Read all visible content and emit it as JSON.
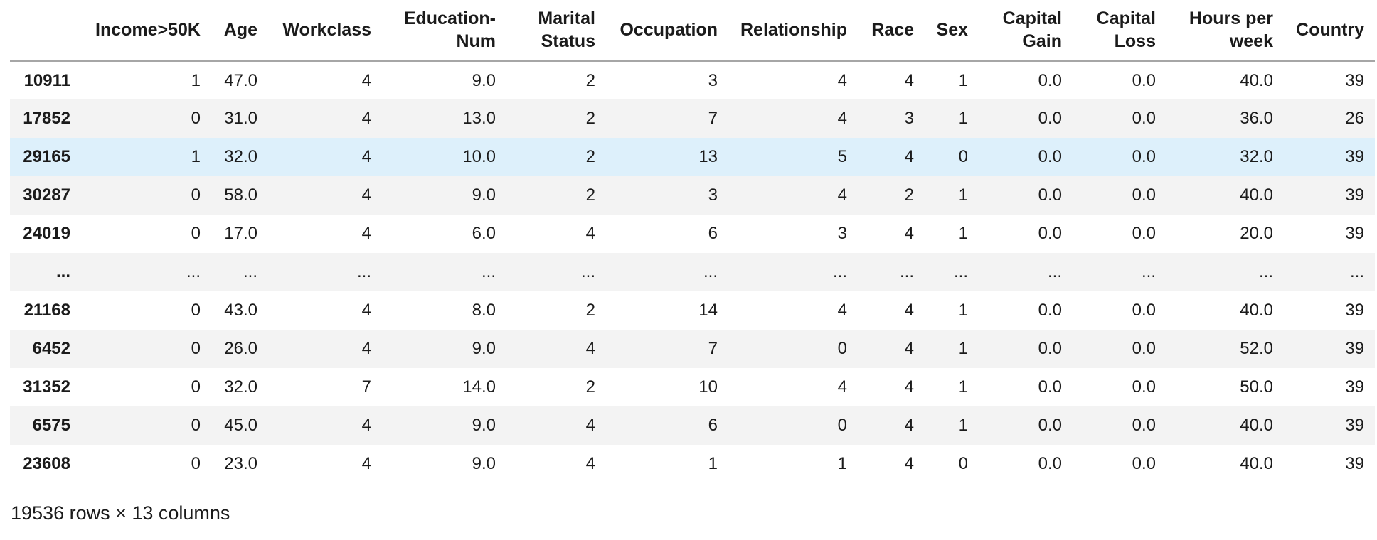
{
  "table": {
    "column_headers": [
      "",
      "Income>50K",
      "Age",
      "Workclass",
      "Education-Num",
      "Marital Status",
      "Occupation",
      "Relationship",
      "Race",
      "Sex",
      "Capital Gain",
      "Capital Loss",
      "Hours per week",
      "Country"
    ],
    "rows": [
      {
        "index": "10911",
        "values": [
          "1",
          "47.0",
          "4",
          "9.0",
          "2",
          "3",
          "4",
          "4",
          "1",
          "0.0",
          "0.0",
          "40.0",
          "39"
        ],
        "highlighted": false
      },
      {
        "index": "17852",
        "values": [
          "0",
          "31.0",
          "4",
          "13.0",
          "2",
          "7",
          "4",
          "3",
          "1",
          "0.0",
          "0.0",
          "36.0",
          "26"
        ],
        "highlighted": false
      },
      {
        "index": "29165",
        "values": [
          "1",
          "32.0",
          "4",
          "10.0",
          "2",
          "13",
          "5",
          "4",
          "0",
          "0.0",
          "0.0",
          "32.0",
          "39"
        ],
        "highlighted": true
      },
      {
        "index": "30287",
        "values": [
          "0",
          "58.0",
          "4",
          "9.0",
          "2",
          "3",
          "4",
          "2",
          "1",
          "0.0",
          "0.0",
          "40.0",
          "39"
        ],
        "highlighted": false
      },
      {
        "index": "24019",
        "values": [
          "0",
          "17.0",
          "4",
          "6.0",
          "4",
          "6",
          "3",
          "4",
          "1",
          "0.0",
          "0.0",
          "20.0",
          "39"
        ],
        "highlighted": false
      },
      {
        "index": "...",
        "values": [
          "...",
          "...",
          "...",
          "...",
          "...",
          "...",
          "...",
          "...",
          "...",
          "...",
          "...",
          "...",
          "..."
        ],
        "highlighted": false
      },
      {
        "index": "21168",
        "values": [
          "0",
          "43.0",
          "4",
          "8.0",
          "2",
          "14",
          "4",
          "4",
          "1",
          "0.0",
          "0.0",
          "40.0",
          "39"
        ],
        "highlighted": false
      },
      {
        "index": "6452",
        "values": [
          "0",
          "26.0",
          "4",
          "9.0",
          "4",
          "7",
          "0",
          "4",
          "1",
          "0.0",
          "0.0",
          "52.0",
          "39"
        ],
        "highlighted": false
      },
      {
        "index": "31352",
        "values": [
          "0",
          "32.0",
          "7",
          "14.0",
          "2",
          "10",
          "4",
          "4",
          "1",
          "0.0",
          "0.0",
          "50.0",
          "39"
        ],
        "highlighted": false
      },
      {
        "index": "6575",
        "values": [
          "0",
          "45.0",
          "4",
          "9.0",
          "4",
          "6",
          "0",
          "4",
          "1",
          "0.0",
          "0.0",
          "40.0",
          "39"
        ],
        "highlighted": false
      },
      {
        "index": "23608",
        "values": [
          "0",
          "23.0",
          "4",
          "9.0",
          "4",
          "1",
          "1",
          "4",
          "0",
          "0.0",
          "0.0",
          "40.0",
          "39"
        ],
        "highlighted": false
      }
    ],
    "summary": "19536 rows × 13 columns"
  },
  "colors": {
    "highlighted_row": "#ddf0fb",
    "stripe_row": "#f3f3f3",
    "header_border": "#a6a6a6",
    "text": "#1b1b1b",
    "background": "#ffffff"
  }
}
